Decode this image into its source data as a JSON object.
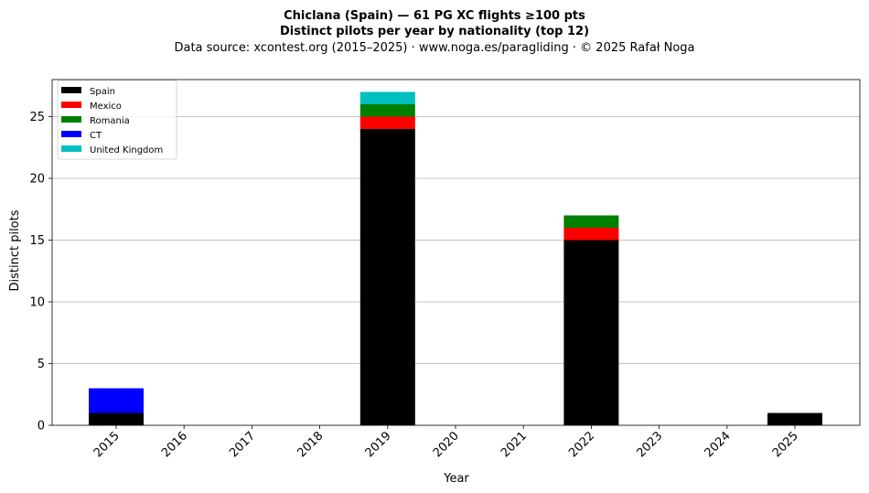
{
  "chart_data": {
    "type": "bar",
    "stacked": true,
    "title_line1": "Chiclana (Spain)  —  61 PG XC flights ≥100 pts",
    "title_line2": "Distinct pilots per year by nationality (top 12)",
    "subtitle": "Data source: xcontest.org (2015–2025)  ·  www.noga.es/paragliding  ·  © 2025 Rafał Noga",
    "xlabel": "Year",
    "ylabel": "Distinct pilots",
    "categories": [
      "2015",
      "2016",
      "2017",
      "2018",
      "2019",
      "2020",
      "2021",
      "2022",
      "2023",
      "2024",
      "2025"
    ],
    "ylim": [
      0,
      28
    ],
    "yticks": [
      0,
      5,
      10,
      15,
      20,
      25
    ],
    "grid": "y",
    "legend_position": "top-left",
    "series": [
      {
        "name": "Spain",
        "color": "#000000",
        "values": [
          1,
          0,
          0,
          0,
          24,
          0,
          0,
          15,
          0,
          0,
          1
        ]
      },
      {
        "name": "Mexico",
        "color": "#ff0000",
        "values": [
          0,
          0,
          0,
          0,
          1,
          0,
          0,
          1,
          0,
          0,
          0
        ]
      },
      {
        "name": "Romania",
        "color": "#008000",
        "values": [
          0,
          0,
          0,
          0,
          1,
          0,
          0,
          1,
          0,
          0,
          0
        ]
      },
      {
        "name": "CT",
        "color": "#0000ff",
        "values": [
          2,
          0,
          0,
          0,
          0,
          0,
          0,
          0,
          0,
          0,
          0
        ]
      },
      {
        "name": "United Kingdom",
        "color": "#00bfbf",
        "values": [
          0,
          0,
          0,
          0,
          1,
          0,
          0,
          0,
          0,
          0,
          0
        ]
      }
    ]
  }
}
